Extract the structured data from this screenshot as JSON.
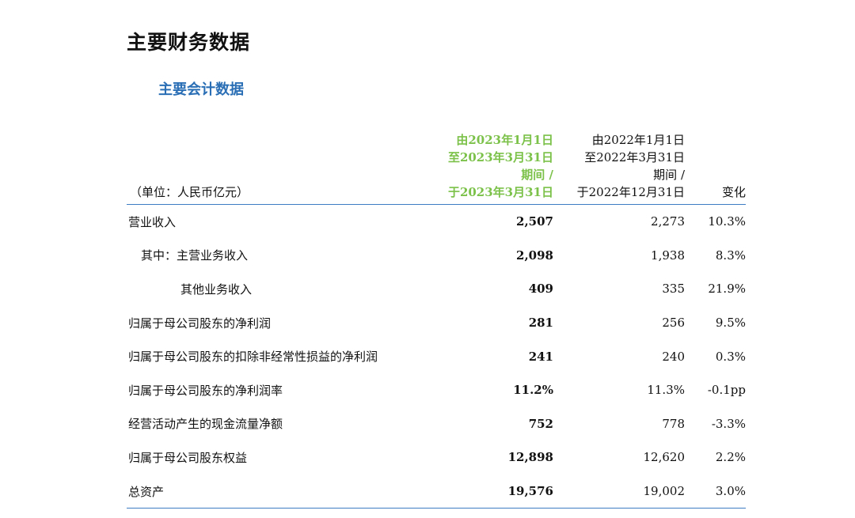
{
  "page_title": "主要财务数据",
  "section_title": "主要会计数据",
  "table": {
    "unit_label": "（单位：人民币亿元）",
    "col_current": [
      "由2023年1月1日",
      "至2023年3月31日",
      "期间 /",
      "于2023年3月31日"
    ],
    "col_previous": [
      "由2022年1月1日",
      "至2022年3月31日",
      "期间 /",
      "于2022年12月31日"
    ],
    "col_change": "变化",
    "rows": [
      {
        "label": "营业收入",
        "current": "2,507",
        "previous": "2,273",
        "change": "10.3%"
      },
      {
        "label": "其中：主营业务收入",
        "current": "2,098",
        "previous": "1,938",
        "change": "8.3%"
      },
      {
        "label": "其他业务收入",
        "current": "409",
        "previous": "335",
        "change": "21.9%"
      },
      {
        "label": "归属于母公司股东的净利润",
        "current": "281",
        "previous": "256",
        "change": "9.5%"
      },
      {
        "label": "归属于母公司股东的扣除非经常性损益的净利润",
        "current": "241",
        "previous": "240",
        "change": "0.3%"
      },
      {
        "label": "归属于母公司股东的净利润率",
        "current": "11.2%",
        "previous": "11.3%",
        "change": "-0.1pp"
      },
      {
        "label": "经营活动产生的现金流量净额",
        "current": "752",
        "previous": "778",
        "change": "-3.3%"
      },
      {
        "label": "归属于母公司股东权益",
        "current": "12,898",
        "previous": "12,620",
        "change": "2.2%"
      },
      {
        "label": "总资产",
        "current": "19,576",
        "previous": "19,002",
        "change": "3.0%"
      }
    ]
  },
  "colors": {
    "accent_blue": "#2a6fb5",
    "rule_blue": "#3d7cc2",
    "current_period_green": "#7cc24a"
  }
}
